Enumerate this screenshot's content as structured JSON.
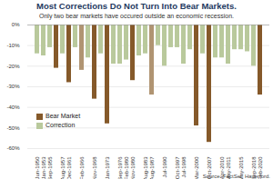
{
  "chart_data": {
    "type": "bar",
    "title": "Most Corrections Do Not Turn Into Bear Markets.",
    "subtitle": "Only two bear markets have occured outside an economic recession.",
    "caption": "Source: FactSet, Haverford.",
    "categories": [
      "Jun-1950",
      "Jan-1953",
      "Sep-1955",
      null,
      "Aug-1957",
      "Dec-1961",
      null,
      "Feb-1966",
      null,
      "Nov-1968",
      null,
      "Jan-1973",
      null,
      "Sep-1976",
      "Feb-1980",
      "Nov-1980",
      null,
      "Aug-1983",
      "Aug-1987",
      null,
      "Jul-1990",
      null,
      "Oct-1997",
      "Jul-1998",
      null,
      "Mar-2000",
      null,
      "Oct-2007",
      null,
      "Apr-2010",
      "May-2011",
      null,
      "May-2015",
      null,
      "Sep-2018",
      "Feb-2020"
    ],
    "series": [
      {
        "name": "Bear Market",
        "color": "#85592a",
        "values": [
          null,
          null,
          null,
          -21,
          null,
          -28,
          null,
          -22,
          null,
          -36,
          null,
          -48,
          null,
          null,
          null,
          -27,
          null,
          null,
          -34,
          null,
          null,
          null,
          null,
          null,
          null,
          -49,
          null,
          -57,
          null,
          null,
          null,
          null,
          null,
          null,
          null,
          -34
        ],
        "colors": [
          "#85592a",
          "#85592a",
          "#85592a",
          "#85592a",
          "#85592a",
          "#85592a",
          "#85592a",
          "#b09472",
          "#85592a",
          "#85592a",
          "#85592a",
          "#85592a",
          "#85592a",
          "#85592a",
          "#85592a",
          "#85592a",
          "#85592a",
          "#85592a",
          "#b09472",
          "#85592a",
          "#85592a",
          "#85592a",
          "#85592a",
          "#85592a",
          "#85592a",
          "#85592a",
          "#85592a",
          "#85592a",
          "#85592a",
          "#85592a",
          "#85592a",
          "#85592a",
          "#85592a",
          "#85592a",
          "#85592a",
          "#85592a"
        ]
      },
      {
        "name": "Correction",
        "color": "#b9c99c",
        "values": [
          -14,
          -15,
          -11,
          null,
          -14,
          null,
          -11,
          null,
          -16,
          null,
          -14,
          null,
          -19,
          -19,
          -17,
          null,
          -15,
          -14,
          null,
          -10,
          -20,
          -11,
          -11,
          -19,
          -12,
          null,
          -14,
          null,
          -16,
          -16,
          -19,
          -12,
          -12,
          -13,
          -20,
          null
        ]
      }
    ],
    "ylim": [
      -60,
      0
    ],
    "yticks": [
      {
        "value": 0,
        "label": "0%"
      },
      {
        "value": -10,
        "label": "-10%"
      },
      {
        "value": -20,
        "label": "-20%"
      },
      {
        "value": -30,
        "label": "-30%"
      },
      {
        "value": -40,
        "label": "-40%"
      },
      {
        "value": -50,
        "label": "-50%"
      },
      {
        "value": -60,
        "label": "-60%"
      }
    ],
    "grid": true,
    "legend": "bottom-left"
  }
}
